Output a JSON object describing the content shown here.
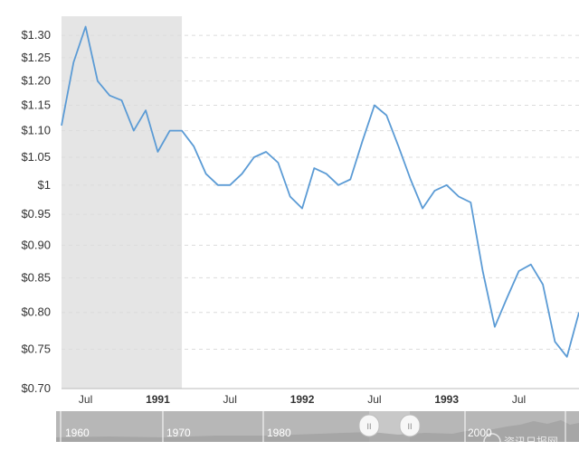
{
  "chart_data": {
    "type": "line",
    "title": "",
    "xlabel": "",
    "ylabel": "",
    "ylim": [
      0.7,
      1.34
    ],
    "xlim": [
      "1990-05",
      "1993-12"
    ],
    "y_scale": "log",
    "grid": "horizontal-dashed",
    "legend": "none",
    "y_ticks": [
      "$1.30",
      "$1.25",
      "$1.20",
      "$1.15",
      "$1.10",
      "$1.05",
      "$1",
      "$0.95",
      "$0.90",
      "$0.85",
      "$0.80",
      "$0.75",
      "$0.70"
    ],
    "y_tick_values": [
      1.3,
      1.25,
      1.2,
      1.15,
      1.1,
      1.05,
      1.0,
      0.95,
      0.9,
      0.85,
      0.8,
      0.75,
      0.7
    ],
    "x_ticks": [
      {
        "label": "Jul",
        "date": "1990-07",
        "major": false
      },
      {
        "label": "1991",
        "date": "1991-01",
        "major": true
      },
      {
        "label": "Jul",
        "date": "1991-07",
        "major": false
      },
      {
        "label": "1992",
        "date": "1992-01",
        "major": true
      },
      {
        "label": "Jul",
        "date": "1992-07",
        "major": false
      },
      {
        "label": "1993",
        "date": "1993-01",
        "major": true
      },
      {
        "label": "Jul",
        "date": "1993-07",
        "major": false
      }
    ],
    "recession_band": {
      "start": "1990-05",
      "end": "1991-03"
    },
    "series": [
      {
        "color": "#5b9bd5",
        "x": [
          "1990-05",
          "1990-06",
          "1990-07",
          "1990-08",
          "1990-09",
          "1990-10",
          "1990-11",
          "1990-12",
          "1991-01",
          "1991-02",
          "1991-03",
          "1991-04",
          "1991-05",
          "1991-06",
          "1991-07",
          "1991-08",
          "1991-09",
          "1991-10",
          "1991-11",
          "1991-12",
          "1992-01",
          "1992-02",
          "1992-03",
          "1992-04",
          "1992-05",
          "1992-06",
          "1992-07",
          "1992-08",
          "1992-09",
          "1992-10",
          "1992-11",
          "1992-12",
          "1993-01",
          "1993-02",
          "1993-03",
          "1993-04",
          "1993-05",
          "1993-06",
          "1993-07",
          "1993-08",
          "1993-09",
          "1993-10",
          "1993-11",
          "1993-12"
        ],
        "values": [
          1.11,
          1.24,
          1.32,
          1.2,
          1.17,
          1.16,
          1.1,
          1.14,
          1.06,
          1.1,
          1.1,
          1.07,
          1.02,
          1.0,
          1.0,
          1.02,
          1.05,
          1.06,
          1.04,
          0.98,
          0.96,
          1.03,
          1.02,
          1.0,
          1.01,
          1.08,
          1.15,
          1.13,
          1.07,
          1.01,
          0.96,
          0.99,
          1.0,
          0.98,
          0.97,
          0.86,
          0.78,
          0.82,
          0.86,
          0.87,
          0.84,
          0.76,
          0.74,
          0.8
        ]
      }
    ]
  },
  "navigator": {
    "labels": [
      "1960",
      "1970",
      "1980",
      "2000"
    ],
    "handle_left": "II",
    "handle_right": "II"
  },
  "watermark": "资讯日报网"
}
